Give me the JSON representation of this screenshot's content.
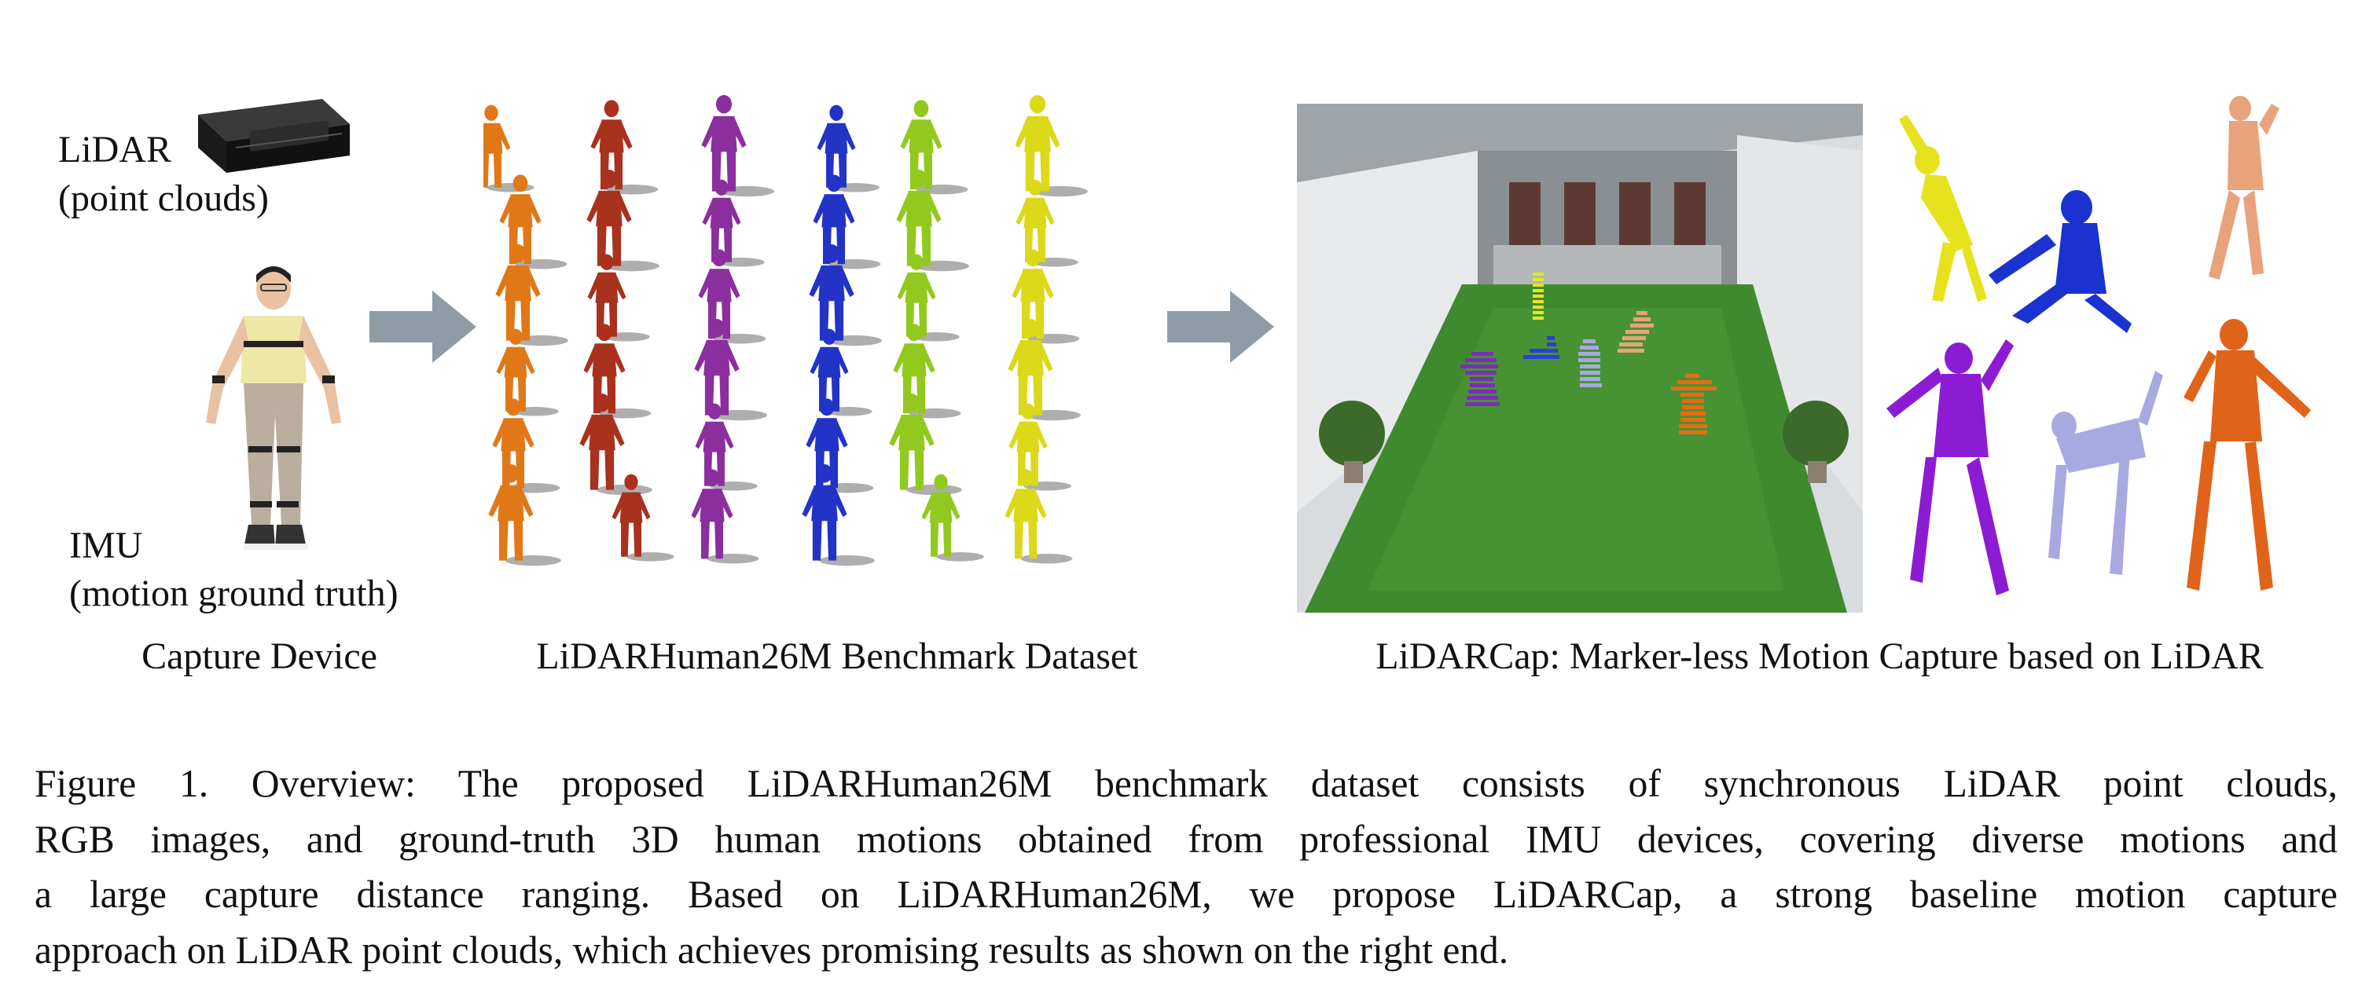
{
  "figure": {
    "device_panel": {
      "lidar_label": "LiDAR",
      "lidar_sub": "(point clouds)",
      "imu_label": "IMU",
      "imu_sub": "(motion ground truth)",
      "title": "Capture Device"
    },
    "dataset_panel": {
      "title": "LiDARHuman26M Benchmark Dataset"
    },
    "capture_panel": {
      "title": "LiDARCap: Marker-less Motion Capture based on LiDAR"
    },
    "colors": {
      "arrow": "#8f9ca6",
      "orange": "#e07818",
      "red": "#a8321e",
      "purple": "#8b2e9e",
      "blue": "#2233c6",
      "green": "#92c91e",
      "yellow": "#dcd81a",
      "grass": "#3f8a2e",
      "lavender": "#a7a9e0",
      "peach": "#e8a27c"
    }
  },
  "caption": {
    "lines": [
      "Figure 1.  Overview: The proposed LiDARHuman26M benchmark dataset consists of synchronous LiDAR point clouds,",
      "RGB images, and ground-truth 3D human motions obtained from professional IMU devices, covering diverse motions and",
      "a large capture distance ranging.  Based on LiDARHuman26M, we propose LiDARCap, a strong baseline motion capture",
      "approach on LiDAR point clouds, which achieves promising results as shown on the right end."
    ]
  }
}
